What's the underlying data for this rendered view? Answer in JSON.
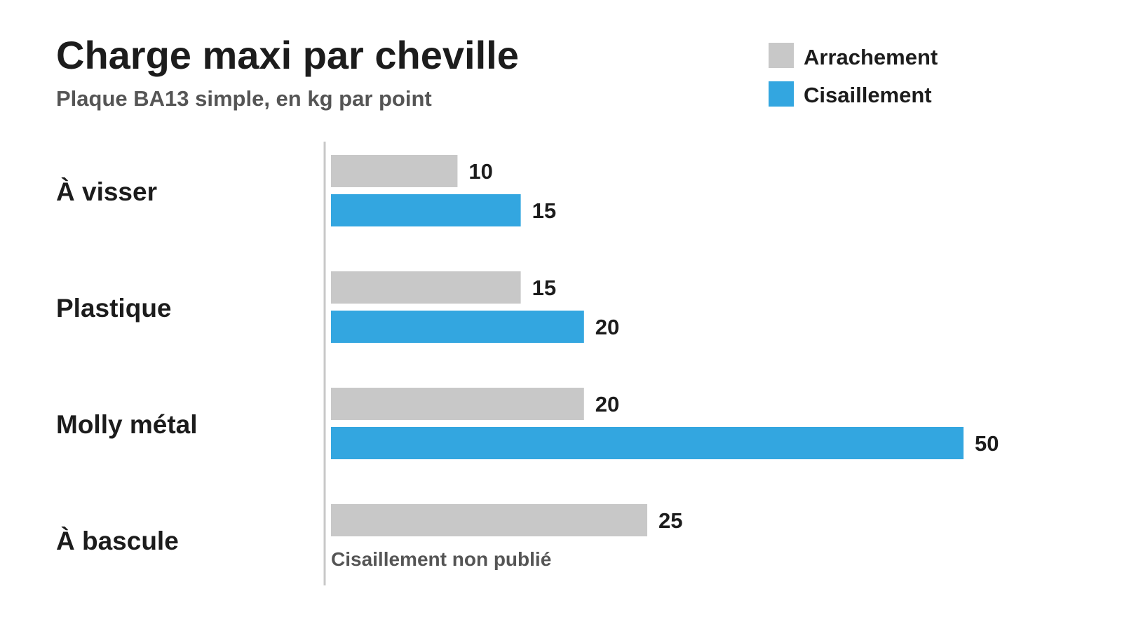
{
  "chart_data": {
    "type": "bar",
    "orientation": "horizontal",
    "title": "Charge maxi par cheville",
    "subtitle": "Plaque BA13 simple, en kg par point",
    "categories": [
      "À visser",
      "Plastique",
      "Molly métal",
      "À bascule"
    ],
    "series": [
      {
        "name": "Arrachement",
        "color": "#c8c8c8",
        "values": [
          10,
          15,
          20,
          25
        ]
      },
      {
        "name": "Cisaillement",
        "color": "#33a6e0",
        "values": [
          15,
          20,
          50,
          null
        ]
      }
    ],
    "annotations": [
      {
        "category": "À bascule",
        "series": "Cisaillement",
        "text": "Cisaillement non publié"
      }
    ],
    "xlim": [
      0,
      50
    ],
    "grid": false,
    "legend_position": "top-right"
  }
}
